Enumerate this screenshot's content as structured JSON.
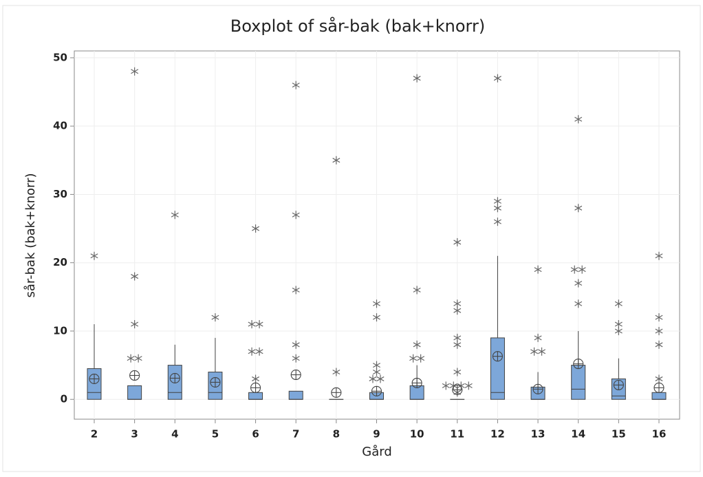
{
  "chart_data": {
    "type": "boxplot",
    "title": "Boxplot of sår-bak (bak+knorr)",
    "x_label": "Gård",
    "y_label": "sår-bak (bak+knorr)",
    "categories": [
      "2",
      "3",
      "4",
      "5",
      "6",
      "7",
      "8",
      "9",
      "10",
      "11",
      "12",
      "13",
      "14",
      "15",
      "16"
    ],
    "color": "#7da7d9",
    "ylim": [
      -2.9,
      51
    ],
    "yticks": [
      0,
      10,
      20,
      30,
      40,
      50
    ],
    "grid": true,
    "boxes": [
      {
        "whisker_low": 0,
        "q1": 0,
        "median": 1,
        "q3": 4.5,
        "whisker_high": 11,
        "mean": 3,
        "outliers": [
          21
        ]
      },
      {
        "whisker_low": 0,
        "q1": 0,
        "median": 0,
        "q3": 2,
        "whisker_high": 2,
        "mean": 3.5,
        "outliers": [
          6,
          6,
          11,
          18,
          48
        ]
      },
      {
        "whisker_low": 0,
        "q1": 0,
        "median": 1,
        "q3": 5,
        "whisker_high": 8,
        "mean": 3.1,
        "outliers": [
          27
        ]
      },
      {
        "whisker_low": 0,
        "q1": 0,
        "median": 1,
        "q3": 4,
        "whisker_high": 9,
        "mean": 2.5,
        "outliers": [
          12
        ]
      },
      {
        "whisker_low": 0,
        "q1": 0,
        "median": 0,
        "q3": 1,
        "whisker_high": 1,
        "mean": 1.7,
        "outliers": [
          3,
          7,
          7,
          11,
          11,
          25
        ]
      },
      {
        "whisker_low": 0,
        "q1": 0,
        "median": 0,
        "q3": 1.2,
        "whisker_high": 1.2,
        "mean": 3.6,
        "outliers": [
          6,
          8,
          16,
          27,
          46
        ]
      },
      {
        "whisker_low": 0,
        "q1": 0,
        "median": 0,
        "q3": 0,
        "whisker_high": 0,
        "mean": 1,
        "outliers": [
          4,
          35
        ]
      },
      {
        "whisker_low": 0,
        "q1": 0,
        "median": 0,
        "q3": 1,
        "whisker_high": 1,
        "mean": 1.2,
        "outliers": [
          3,
          3,
          4,
          5,
          12,
          14
        ]
      },
      {
        "whisker_low": 0,
        "q1": 0,
        "median": 0,
        "q3": 2,
        "whisker_high": 5,
        "mean": 2.4,
        "outliers": [
          6,
          6,
          8,
          16,
          47
        ]
      },
      {
        "whisker_low": 0,
        "q1": 0,
        "median": 0,
        "q3": 0,
        "whisker_high": 0,
        "mean": 1.4,
        "outliers": [
          1,
          2,
          2,
          2,
          2,
          4,
          8,
          9,
          13,
          14,
          23
        ]
      },
      {
        "whisker_low": 0,
        "q1": 0,
        "median": 1,
        "q3": 9,
        "whisker_high": 21,
        "mean": 6.3,
        "outliers": [
          26,
          28,
          29,
          47
        ]
      },
      {
        "whisker_low": 0,
        "q1": 0,
        "median": 0,
        "q3": 1.8,
        "whisker_high": 4,
        "mean": 1.5,
        "outliers": [
          7,
          7,
          9,
          19
        ]
      },
      {
        "whisker_low": 0,
        "q1": 0,
        "median": 1.5,
        "q3": 5,
        "whisker_high": 10,
        "mean": 5.2,
        "outliers": [
          14,
          17,
          19,
          19,
          28,
          41
        ]
      },
      {
        "whisker_low": 0,
        "q1": 0,
        "median": 0.5,
        "q3": 3,
        "whisker_high": 6,
        "mean": 2.1,
        "outliers": [
          10,
          11,
          14
        ]
      },
      {
        "whisker_low": 0,
        "q1": 0,
        "median": 0,
        "q3": 1,
        "whisker_high": 1,
        "mean": 1.7,
        "outliers": [
          3,
          8,
          10,
          12,
          21
        ]
      }
    ]
  }
}
